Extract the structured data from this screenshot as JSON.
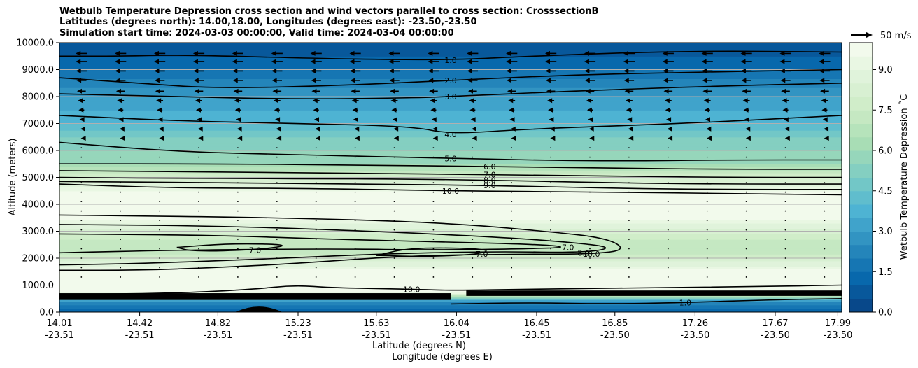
{
  "chart_data": {
    "type": "filled-contour-cross-section",
    "title_lines": [
      "Wetbulb Temperature Depression cross section and wind vectors parallel to cross section: CrosssectionB",
      "Latitudes (degrees north): 14.00,18.00, Longitudes (degrees east): -23.50,-23.50",
      "Simulation start time: 2024-03-03 00:00:00, Valid time: 2024-03-04 00:00:00"
    ],
    "ylabel": "Altitude (meters)",
    "xlabel_lat": "Latitude (degrees N)",
    "xlabel_lon": "Longitude (degrees E)",
    "ylim": [
      0,
      10000
    ],
    "yticks": [
      "0.0",
      "1000.0",
      "2000.0",
      "3000.0",
      "4000.0",
      "5000.0",
      "6000.0",
      "7000.0",
      "8000.0",
      "9000.0",
      "10000.0"
    ],
    "xticks": [
      {
        "pos": 0.0,
        "lat": "14.01",
        "lon": "-23.51"
      },
      {
        "pos": 0.1025,
        "lat": "14.42",
        "lon": "-23.51"
      },
      {
        "pos": 0.2025,
        "lat": "14.82",
        "lon": "-23.51"
      },
      {
        "pos": 0.305,
        "lat": "15.23",
        "lon": "-23.51"
      },
      {
        "pos": 0.405,
        "lat": "15.63",
        "lon": "-23.51"
      },
      {
        "pos": 0.5075,
        "lat": "16.04",
        "lon": "-23.51"
      },
      {
        "pos": 0.61,
        "lat": "16.45",
        "lon": "-23.51"
      },
      {
        "pos": 0.71,
        "lat": "16.85",
        "lon": "-23.50"
      },
      {
        "pos": 0.8125,
        "lat": "17.26",
        "lon": "-23.50"
      },
      {
        "pos": 0.915,
        "lat": "17.67",
        "lon": "-23.50"
      },
      {
        "pos": 0.995,
        "lat": "17.99",
        "lon": "-23.50"
      }
    ],
    "colorbar": {
      "label": "Wetbulb Temperature Depression ˚C",
      "min": 0,
      "max": 10,
      "levels": 20,
      "ticks": [
        "0.0",
        "1.5",
        "3.0",
        "4.5",
        "6.0",
        "7.5",
        "9.0"
      ]
    },
    "quiver_key": "50 m/s",
    "depression_profile": [
      {
        "alt": 0,
        "value": 1.0
      },
      {
        "alt": 400,
        "value": 2.5
      },
      {
        "alt": 750,
        "value": 10.0
      },
      {
        "alt": 1000,
        "value": 10.0
      },
      {
        "alt": 1400,
        "value": 10.0
      },
      {
        "alt": 2000,
        "value": 8.0
      },
      {
        "alt": 2300,
        "value": 7.0
      },
      {
        "alt": 2700,
        "value": 7.5
      },
      {
        "alt": 3100,
        "value": 8.5
      },
      {
        "alt": 3500,
        "value": 9.6
      },
      {
        "alt": 3800,
        "value": 10.0
      },
      {
        "alt": 4200,
        "value": 10.0
      },
      {
        "alt": 4500,
        "value": 9.5
      },
      {
        "alt": 5000,
        "value": 8.0
      },
      {
        "alt": 5500,
        "value": 6.0
      },
      {
        "alt": 6000,
        "value": 5.5
      },
      {
        "alt": 6500,
        "value": 5.0
      },
      {
        "alt": 7000,
        "value": 4.0
      },
      {
        "alt": 7500,
        "value": 3.5
      },
      {
        "alt": 8000,
        "value": 3.0
      },
      {
        "alt": 8500,
        "value": 2.2
      },
      {
        "alt": 9000,
        "value": 1.5
      },
      {
        "alt": 9500,
        "value": 1.0
      },
      {
        "alt": 10000,
        "value": 0.6
      }
    ],
    "contours": [
      {
        "level": "1.0",
        "points": [
          [
            0.0,
            9500
          ],
          [
            0.08,
            9500
          ],
          [
            0.15,
            9550
          ],
          [
            0.35,
            9400
          ],
          [
            0.5,
            9350
          ],
          [
            0.6,
            9500
          ],
          [
            0.8,
            9700
          ],
          [
            1.0,
            9650
          ]
        ]
      },
      {
        "level": "2.0",
        "points": [
          [
            0.0,
            8700
          ],
          [
            0.1,
            8500
          ],
          [
            0.2,
            8300
          ],
          [
            0.35,
            8400
          ],
          [
            0.5,
            8600
          ],
          [
            0.65,
            8800
          ],
          [
            0.8,
            8900
          ],
          [
            1.0,
            9000
          ]
        ]
      },
      {
        "level": "3.0",
        "points": [
          [
            0.0,
            8100
          ],
          [
            0.15,
            8000
          ],
          [
            0.3,
            7900
          ],
          [
            0.45,
            7950
          ],
          [
            0.5,
            8000
          ],
          [
            0.65,
            8200
          ],
          [
            0.85,
            8400
          ],
          [
            1.0,
            8500
          ]
        ]
      },
      {
        "level": "4.0",
        "points": [
          [
            0.0,
            7300
          ],
          [
            0.15,
            7100
          ],
          [
            0.3,
            7000
          ],
          [
            0.45,
            6900
          ],
          [
            0.5,
            6600
          ],
          [
            0.6,
            6800
          ],
          [
            0.8,
            7000
          ],
          [
            1.0,
            7300
          ]
        ]
      },
      {
        "level": "5.0",
        "points": [
          [
            0.0,
            6300
          ],
          [
            0.15,
            5950
          ],
          [
            0.3,
            5850
          ],
          [
            0.5,
            5700
          ],
          [
            0.7,
            5600
          ],
          [
            0.85,
            5650
          ],
          [
            1.0,
            5650
          ]
        ]
      },
      {
        "level": "6.0",
        "points": [
          [
            0.0,
            5500
          ],
          [
            0.2,
            5500
          ],
          [
            0.4,
            5450
          ],
          [
            0.55,
            5400
          ],
          [
            0.7,
            5350
          ],
          [
            0.85,
            5300
          ],
          [
            1.0,
            5300
          ]
        ]
      },
      {
        "level": "7.0",
        "points": [
          [
            0.0,
            5250
          ],
          [
            0.2,
            5200
          ],
          [
            0.4,
            5150
          ],
          [
            0.55,
            5100
          ],
          [
            0.7,
            5050
          ],
          [
            0.85,
            5000
          ],
          [
            1.0,
            5000
          ]
        ]
      },
      {
        "level": "8.0",
        "points": [
          [
            0.0,
            5000
          ],
          [
            0.2,
            4950
          ],
          [
            0.4,
            4950
          ],
          [
            0.55,
            4900
          ],
          [
            0.7,
            4800
          ],
          [
            0.85,
            4750
          ],
          [
            1.0,
            4750
          ]
        ]
      },
      {
        "level": "9.0",
        "points": [
          [
            0.0,
            4850
          ],
          [
            0.2,
            4800
          ],
          [
            0.4,
            4750
          ],
          [
            0.55,
            4700
          ],
          [
            0.7,
            4600
          ],
          [
            0.85,
            4550
          ],
          [
            1.0,
            4550
          ]
        ]
      },
      {
        "level": "10.0",
        "points": [
          [
            0.0,
            4750
          ],
          [
            0.15,
            4600
          ],
          [
            0.3,
            4600
          ],
          [
            0.5,
            4500
          ],
          [
            0.7,
            4450
          ],
          [
            0.85,
            4400
          ],
          [
            1.0,
            4350
          ]
        ]
      },
      {
        "level": "10.0",
        "points": [
          [
            0.0,
            3600
          ],
          [
            0.3,
            3500
          ],
          [
            0.5,
            3300
          ],
          [
            0.62,
            3000
          ],
          [
            0.7,
            2750
          ],
          [
            0.725,
            2300
          ],
          [
            0.68,
            2150
          ],
          [
            0.6,
            2150
          ],
          [
            0.45,
            2100
          ],
          [
            0.3,
            1800
          ],
          [
            0.2,
            1650
          ],
          [
            0.1,
            1550
          ],
          [
            0.0,
            1550
          ]
        ]
      },
      {
        "level": "8.0",
        "points": [
          [
            0.0,
            3250
          ],
          [
            0.2,
            3200
          ],
          [
            0.4,
            3000
          ],
          [
            0.55,
            2800
          ],
          [
            0.65,
            2600
          ],
          [
            0.71,
            2400
          ],
          [
            0.67,
            2200
          ],
          [
            0.55,
            2250
          ],
          [
            0.4,
            2150
          ],
          [
            0.25,
            1950
          ],
          [
            0.1,
            1800
          ],
          [
            0.0,
            1750
          ]
        ]
      },
      {
        "level": "7.0",
        "points": [
          [
            0.0,
            2900
          ],
          [
            0.2,
            2850
          ],
          [
            0.35,
            2700
          ],
          [
            0.5,
            2600
          ],
          [
            0.62,
            2500
          ],
          [
            0.65,
            2400
          ],
          [
            0.6,
            2350
          ],
          [
            0.48,
            2300
          ],
          [
            0.35,
            2350
          ],
          [
            0.15,
            2300
          ],
          [
            0.0,
            2200
          ]
        ]
      },
      {
        "level": "7.0",
        "points": [
          [
            0.15,
            2400
          ],
          [
            0.22,
            2550
          ],
          [
            0.3,
            2500
          ],
          [
            0.25,
            2300
          ],
          [
            0.17,
            2250
          ],
          [
            0.15,
            2400
          ]
        ]
      },
      {
        "level": "7.0",
        "points": [
          [
            0.405,
            2100
          ],
          [
            0.45,
            2400
          ],
          [
            0.55,
            2350
          ],
          [
            0.54,
            2150
          ],
          [
            0.47,
            2050
          ],
          [
            0.405,
            2100
          ]
        ]
      },
      {
        "level": "1.0",
        "points": [
          [
            0.5,
            300
          ],
          [
            0.6,
            350
          ],
          [
            0.7,
            300
          ],
          [
            0.8,
            350
          ],
          [
            0.9,
            450
          ],
          [
            1.0,
            500
          ]
        ]
      },
      {
        "level": "10.0",
        "points": [
          [
            0.0,
            650
          ],
          [
            0.15,
            700
          ],
          [
            0.25,
            850
          ],
          [
            0.3,
            1000
          ],
          [
            0.35,
            900
          ],
          [
            0.45,
            850
          ],
          [
            0.5,
            800
          ],
          [
            0.6,
            850
          ],
          [
            0.75,
            900
          ],
          [
            0.9,
            950
          ],
          [
            1.0,
            1000
          ]
        ]
      }
    ],
    "land_mask": [
      {
        "x_start": 0.0,
        "x_end": 0.5,
        "top": 700,
        "bottom": 450
      },
      {
        "x_start": 0.52,
        "x_end": 1.0,
        "top": 800,
        "bottom": 600
      }
    ],
    "terrain": {
      "x_center": 0.255,
      "height": 200,
      "half_width": 0.03
    },
    "wind": {
      "rows": [
        {
          "alt": 9600,
          "u": -0.9
        },
        {
          "alt": 9300,
          "u": -0.9
        },
        {
          "alt": 8950,
          "u": -0.85
        },
        {
          "alt": 8600,
          "u": -0.8
        },
        {
          "alt": 8200,
          "u": -0.7
        },
        {
          "alt": 7850,
          "u": -0.55
        },
        {
          "alt": 7500,
          "u": -0.45
        },
        {
          "alt": 7150,
          "u": -0.3
        },
        {
          "alt": 6800,
          "u": -0.15
        },
        {
          "alt": 6450,
          "u": -0.08
        },
        {
          "alt": 6100,
          "u": -0.05
        },
        {
          "alt": 5750,
          "u": -0.03
        },
        {
          "alt": 4800,
          "u": -0.02
        },
        {
          "alt": 4450,
          "u": -0.02
        },
        {
          "alt": 4100,
          "u": -0.02
        },
        {
          "alt": 3750,
          "u": -0.02
        },
        {
          "alt": 3400,
          "u": -0.02
        },
        {
          "alt": 3050,
          "u": -0.02
        },
        {
          "alt": 2700,
          "u": -0.02
        },
        {
          "alt": 2350,
          "u": -0.02
        },
        {
          "alt": 2000,
          "u": -0.02
        },
        {
          "alt": 1650,
          "u": -0.02
        },
        {
          "alt": 1300,
          "u": -0.02
        }
      ],
      "columns": 20
    }
  }
}
